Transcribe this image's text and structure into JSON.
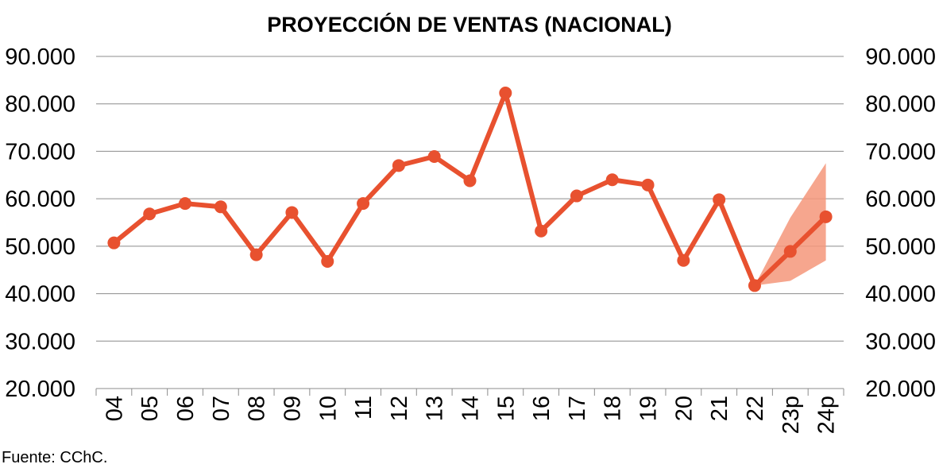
{
  "chart_data": {
    "type": "line",
    "title": "PROYECCIÓN DE VENTAS (NACIONAL)",
    "categories": [
      "04",
      "05",
      "06",
      "07",
      "08",
      "09",
      "10",
      "11",
      "12",
      "13",
      "14",
      "15",
      "16",
      "17",
      "18",
      "19",
      "20",
      "21",
      "22",
      "23p",
      "24p"
    ],
    "series": [
      {
        "values": [
          50700,
          56800,
          59000,
          58300,
          48200,
          57100,
          46800,
          59000,
          67000,
          68900,
          63800,
          82300,
          53200,
          60600,
          64000,
          62900,
          47000,
          59800,
          41700,
          48900,
          56200
        ]
      }
    ],
    "projection_band": {
      "categories": [
        "22",
        "23p",
        "24p"
      ],
      "lower": [
        41700,
        42700,
        47000
      ],
      "upper": [
        41700,
        56000,
        67500
      ]
    },
    "ylim": [
      20000,
      90000
    ],
    "yticks": [
      "20.000",
      "30.000",
      "40.000",
      "50.000",
      "60.000",
      "70.000",
      "80.000",
      "90.000"
    ],
    "ytick_values": [
      20000,
      30000,
      40000,
      50000,
      60000,
      70000,
      80000,
      90000
    ],
    "secondary_y_axis": true,
    "grid": true,
    "xlabel": "",
    "ylabel": "",
    "colors": {
      "line": "#e8512f",
      "band": "#f4967a"
    }
  },
  "source_label": "Fuente:  CChC."
}
